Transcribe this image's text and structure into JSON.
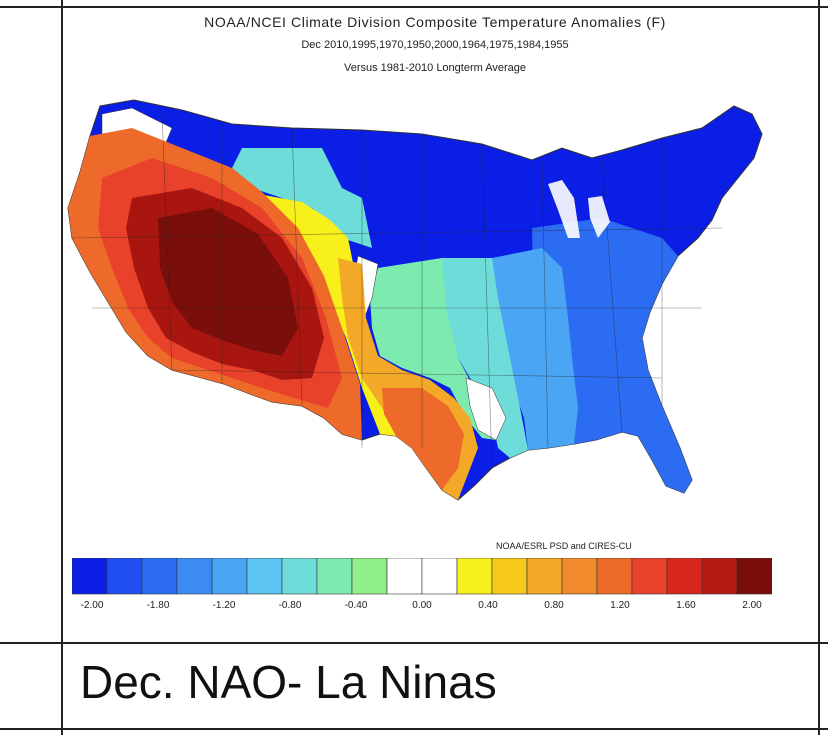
{
  "title": {
    "line1": "NOAA/NCEI Climate Division Composite Temperature Anomalies (F)",
    "line2": "Dec  2010,1995,1970,1950,2000,1964,1975,1984,1955",
    "line3": "Versus 1981-2010 Longterm Average"
  },
  "credit": "NOAA/ESRL PSD and CIRES-CU",
  "caption": "Dec. NAO- La Ninas",
  "colorbar": {
    "colors": [
      "#0a1ee6",
      "#1f4ff0",
      "#2b6cf2",
      "#3b8bf3",
      "#4aa5f5",
      "#5bc4f2",
      "#6edcd8",
      "#7deab0",
      "#8ff08a",
      "#ffffff",
      "#ffffff",
      "#f7f01a",
      "#f6c81c",
      "#f3a827",
      "#f08a2c",
      "#ee6a2a",
      "#e8422a",
      "#d8261f",
      "#b31a14",
      "#7a0e0a"
    ],
    "ticks": [
      "-2.00",
      "-1.80",
      "-1.20",
      "-0.80",
      "-0.40",
      "0.00",
      "0.40",
      "0.80",
      "1.20",
      "1.60",
      "2.00"
    ]
  },
  "map_colors": {
    "far_north_blue": "#0a1ee6",
    "mid_blue": "#2b6cf2",
    "light_blue": "#4aa5f5",
    "cyan": "#6edcd8",
    "green": "#7deab0",
    "white": "#ffffff",
    "yellow": "#f7f01a",
    "orange": "#f3a827",
    "dark_orange": "#ee6a2a",
    "red": "#e8422a",
    "dark_red": "#a8160f",
    "maroon": "#7a0e0a"
  }
}
